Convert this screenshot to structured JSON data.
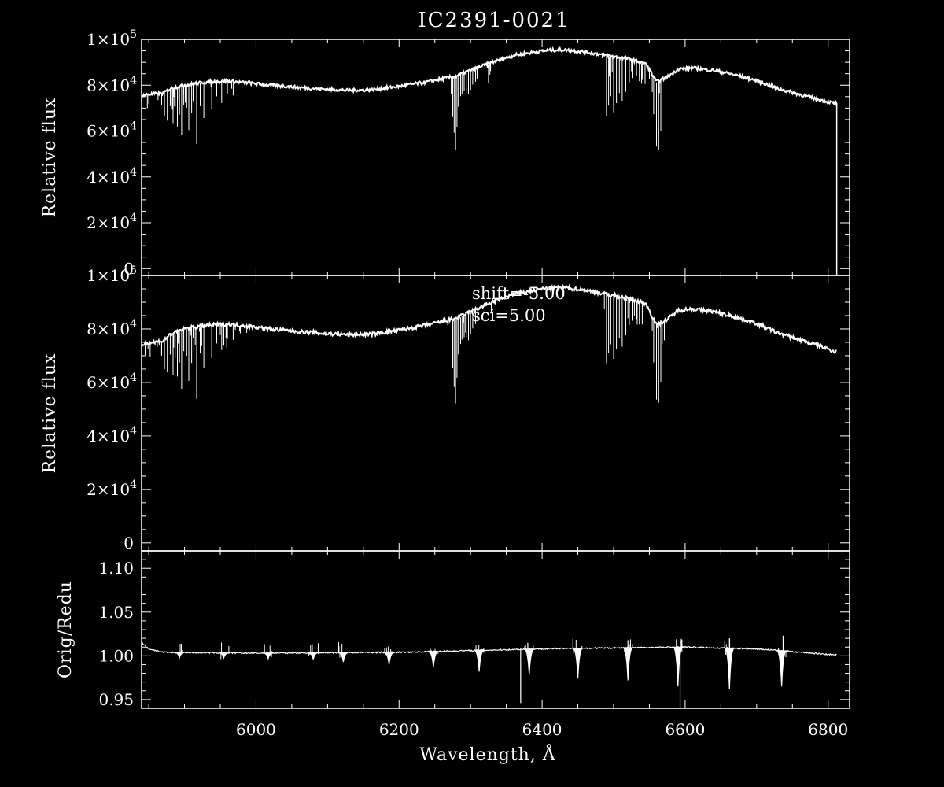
{
  "chart_data": [
    {
      "type": "line",
      "title": "IC2391-0021",
      "xlabel": "",
      "ylabel": "Relative flux",
      "xlim": [
        5840,
        6830
      ],
      "ylim": [
        -3000,
        100000
      ],
      "yticks": [
        {
          "value": 0,
          "label": "0",
          "exp": ""
        },
        {
          "value": 20000,
          "label": "2×10",
          "exp": "4"
        },
        {
          "value": 40000,
          "label": "4×10",
          "exp": "4"
        },
        {
          "value": 60000,
          "label": "6×10",
          "exp": "4"
        },
        {
          "value": 80000,
          "label": "8×10",
          "exp": "4"
        },
        {
          "value": 100000,
          "label": "1×10",
          "exp": "5"
        }
      ],
      "continuum": [
        [
          5840,
          75500
        ],
        [
          5850,
          76000
        ],
        [
          5870,
          76500
        ],
        [
          5880,
          78500
        ],
        [
          5900,
          80000
        ],
        [
          5920,
          81000
        ],
        [
          5940,
          81500
        ],
        [
          5960,
          81800
        ],
        [
          5990,
          81000
        ],
        [
          6020,
          80000
        ],
        [
          6060,
          79000
        ],
        [
          6100,
          78200
        ],
        [
          6130,
          77800
        ],
        [
          6160,
          78000
        ],
        [
          6200,
          79500
        ],
        [
          6240,
          81500
        ],
        [
          6280,
          84000
        ],
        [
          6300,
          86500
        ],
        [
          6330,
          90000
        ],
        [
          6360,
          93000
        ],
        [
          6400,
          95000
        ],
        [
          6430,
          95500
        ],
        [
          6460,
          94500
        ],
        [
          6490,
          93000
        ],
        [
          6520,
          91500
        ],
        [
          6545,
          89500
        ],
        [
          6560,
          81500
        ],
        [
          6575,
          83500
        ],
        [
          6590,
          87000
        ],
        [
          6610,
          87500
        ],
        [
          6640,
          86500
        ],
        [
          6670,
          84500
        ],
        [
          6700,
          82000
        ],
        [
          6730,
          78500
        ],
        [
          6760,
          76000
        ],
        [
          6790,
          73500
        ],
        [
          6810,
          72000
        ]
      ],
      "absorption_lines": [
        [
          5868,
          5
        ],
        [
          5872,
          11
        ],
        [
          5876,
          13
        ],
        [
          5880,
          8
        ],
        [
          5884,
          15
        ],
        [
          5887,
          9
        ],
        [
          5890,
          17
        ],
        [
          5893,
          12
        ],
        [
          5896,
          22
        ],
        [
          5899,
          8
        ],
        [
          5903,
          10
        ],
        [
          5906,
          20
        ],
        [
          5910,
          13
        ],
        [
          5913,
          9
        ],
        [
          5917,
          27
        ],
        [
          5922,
          10
        ],
        [
          5927,
          16
        ],
        [
          5933,
          8
        ],
        [
          5938,
          12
        ],
        [
          5945,
          7
        ],
        [
          5952,
          9
        ],
        [
          5960,
          5
        ],
        [
          5968,
          6
        ],
        [
          6275,
          18
        ],
        [
          6277,
          25
        ],
        [
          6279,
          32
        ],
        [
          6281,
          22
        ],
        [
          6283,
          14
        ],
        [
          6286,
          10
        ],
        [
          6288,
          9
        ],
        [
          6291,
          8
        ],
        [
          6294,
          9
        ],
        [
          6297,
          10
        ],
        [
          6300,
          8
        ],
        [
          6303,
          7
        ],
        [
          6307,
          6
        ],
        [
          6310,
          5
        ],
        [
          6490,
          26
        ],
        [
          6493,
          22
        ],
        [
          6496,
          18
        ],
        [
          6500,
          24
        ],
        [
          6504,
          20
        ],
        [
          6508,
          16
        ],
        [
          6512,
          19
        ],
        [
          6517,
          14
        ],
        [
          6522,
          10
        ],
        [
          6527,
          8
        ],
        [
          6532,
          7
        ],
        [
          6536,
          9
        ],
        [
          6540,
          8
        ],
        [
          6556,
          16
        ],
        [
          6560,
          28
        ],
        [
          6563,
          30
        ],
        [
          6566,
          22
        ]
      ],
      "end_drop_x": 6812
    },
    {
      "type": "line",
      "title": "",
      "xlabel": "",
      "ylabel": "Relative flux",
      "xlim": [
        5840,
        6830
      ],
      "ylim": [
        -3000,
        100000
      ],
      "yticks": [
        {
          "value": 0,
          "label": "0",
          "exp": ""
        },
        {
          "value": 20000,
          "label": "2×10",
          "exp": "4"
        },
        {
          "value": 40000,
          "label": "4×10",
          "exp": "4"
        },
        {
          "value": 60000,
          "label": "6×10",
          "exp": "4"
        },
        {
          "value": 80000,
          "label": "8×10",
          "exp": "4"
        },
        {
          "value": 100000,
          "label": "1×10",
          "exp": "5"
        }
      ],
      "annotations": [
        "shift=-5.00",
        "sci=5.00"
      ],
      "continuum": [
        [
          5840,
          74000
        ],
        [
          5850,
          74800
        ],
        [
          5870,
          75500
        ],
        [
          5880,
          78000
        ],
        [
          5900,
          80000
        ],
        [
          5920,
          81000
        ],
        [
          5940,
          81500
        ],
        [
          5960,
          81800
        ],
        [
          5990,
          81000
        ],
        [
          6020,
          80000
        ],
        [
          6060,
          79000
        ],
        [
          6100,
          78200
        ],
        [
          6130,
          77800
        ],
        [
          6160,
          78000
        ],
        [
          6200,
          79500
        ],
        [
          6240,
          81500
        ],
        [
          6280,
          84000
        ],
        [
          6300,
          86500
        ],
        [
          6330,
          90000
        ],
        [
          6360,
          93000
        ],
        [
          6400,
          95000
        ],
        [
          6430,
          95500
        ],
        [
          6460,
          94500
        ],
        [
          6490,
          93000
        ],
        [
          6520,
          91500
        ],
        [
          6545,
          89500
        ],
        [
          6560,
          81500
        ],
        [
          6575,
          83500
        ],
        [
          6590,
          87000
        ],
        [
          6610,
          87500
        ],
        [
          6640,
          86500
        ],
        [
          6670,
          84500
        ],
        [
          6700,
          82000
        ],
        [
          6730,
          78500
        ],
        [
          6760,
          76000
        ],
        [
          6790,
          73500
        ],
        [
          6810,
          71500
        ]
      ],
      "absorption_lines": [
        [
          5868,
          5
        ],
        [
          5872,
          11
        ],
        [
          5876,
          13
        ],
        [
          5880,
          8
        ],
        [
          5884,
          15
        ],
        [
          5887,
          9
        ],
        [
          5890,
          17
        ],
        [
          5893,
          12
        ],
        [
          5896,
          22
        ],
        [
          5899,
          8
        ],
        [
          5903,
          10
        ],
        [
          5906,
          20
        ],
        [
          5910,
          13
        ],
        [
          5913,
          9
        ],
        [
          5917,
          27
        ],
        [
          5922,
          10
        ],
        [
          5927,
          16
        ],
        [
          5933,
          8
        ],
        [
          5938,
          12
        ],
        [
          5945,
          7
        ],
        [
          5952,
          9
        ],
        [
          5960,
          5
        ],
        [
          5968,
          6
        ],
        [
          6275,
          18
        ],
        [
          6277,
          25
        ],
        [
          6279,
          32
        ],
        [
          6281,
          22
        ],
        [
          6283,
          14
        ],
        [
          6286,
          10
        ],
        [
          6288,
          9
        ],
        [
          6291,
          8
        ],
        [
          6294,
          9
        ],
        [
          6297,
          10
        ],
        [
          6300,
          8
        ],
        [
          6303,
          7
        ],
        [
          6307,
          6
        ],
        [
          6310,
          5
        ],
        [
          6490,
          26
        ],
        [
          6493,
          22
        ],
        [
          6496,
          18
        ],
        [
          6500,
          24
        ],
        [
          6504,
          20
        ],
        [
          6508,
          16
        ],
        [
          6512,
          19
        ],
        [
          6517,
          14
        ],
        [
          6522,
          10
        ],
        [
          6527,
          8
        ],
        [
          6532,
          7
        ],
        [
          6536,
          9
        ],
        [
          6540,
          8
        ],
        [
          6556,
          16
        ],
        [
          6560,
          28
        ],
        [
          6563,
          30
        ],
        [
          6566,
          22
        ]
      ]
    },
    {
      "type": "line",
      "title": "",
      "xlabel": "Wavelength, Å",
      "ylabel": "Orig/Redu",
      "xlim": [
        5840,
        6830
      ],
      "ylim": [
        0.94,
        1.12
      ],
      "xticks": [
        {
          "value": 6000,
          "label": "6000"
        },
        {
          "value": 6200,
          "label": "6200"
        },
        {
          "value": 6400,
          "label": "6400"
        },
        {
          "value": 6600,
          "label": "6600"
        },
        {
          "value": 6800,
          "label": "6800"
        }
      ],
      "yticks": [
        {
          "value": 0.95,
          "label": "0.95"
        },
        {
          "value": 1.0,
          "label": "1.00"
        },
        {
          "value": 1.05,
          "label": "1.05"
        },
        {
          "value": 1.1,
          "label": "1.10"
        }
      ],
      "baseline": [
        [
          5840,
          1.015
        ],
        [
          5850,
          1.008
        ],
        [
          5870,
          1.004
        ],
        [
          6000,
          1.003
        ],
        [
          6200,
          1.004
        ],
        [
          6400,
          1.008
        ],
        [
          6600,
          1.01
        ],
        [
          6700,
          1.008
        ],
        [
          6810,
          1.001
        ]
      ],
      "dips": [
        [
          5893,
          0.998
        ],
        [
          5955,
          0.998
        ],
        [
          6017,
          0.997
        ],
        [
          6080,
          0.996
        ],
        [
          6122,
          0.993
        ],
        [
          6186,
          0.99
        ],
        [
          6248,
          0.987
        ],
        [
          6312,
          0.982
        ],
        [
          6382,
          0.978
        ],
        [
          6450,
          0.974
        ],
        [
          6520,
          0.972
        ],
        [
          6590,
          0.965
        ],
        [
          6662,
          0.962
        ],
        [
          6735,
          0.965
        ]
      ],
      "spikes": [
        [
          6370,
          0.946
        ],
        [
          6593,
          0.94
        ],
        [
          6737,
          1.023
        ],
        [
          6662,
          1.02
        ],
        [
          6520,
          1.018
        ],
        [
          6380,
          1.015
        ]
      ]
    }
  ]
}
